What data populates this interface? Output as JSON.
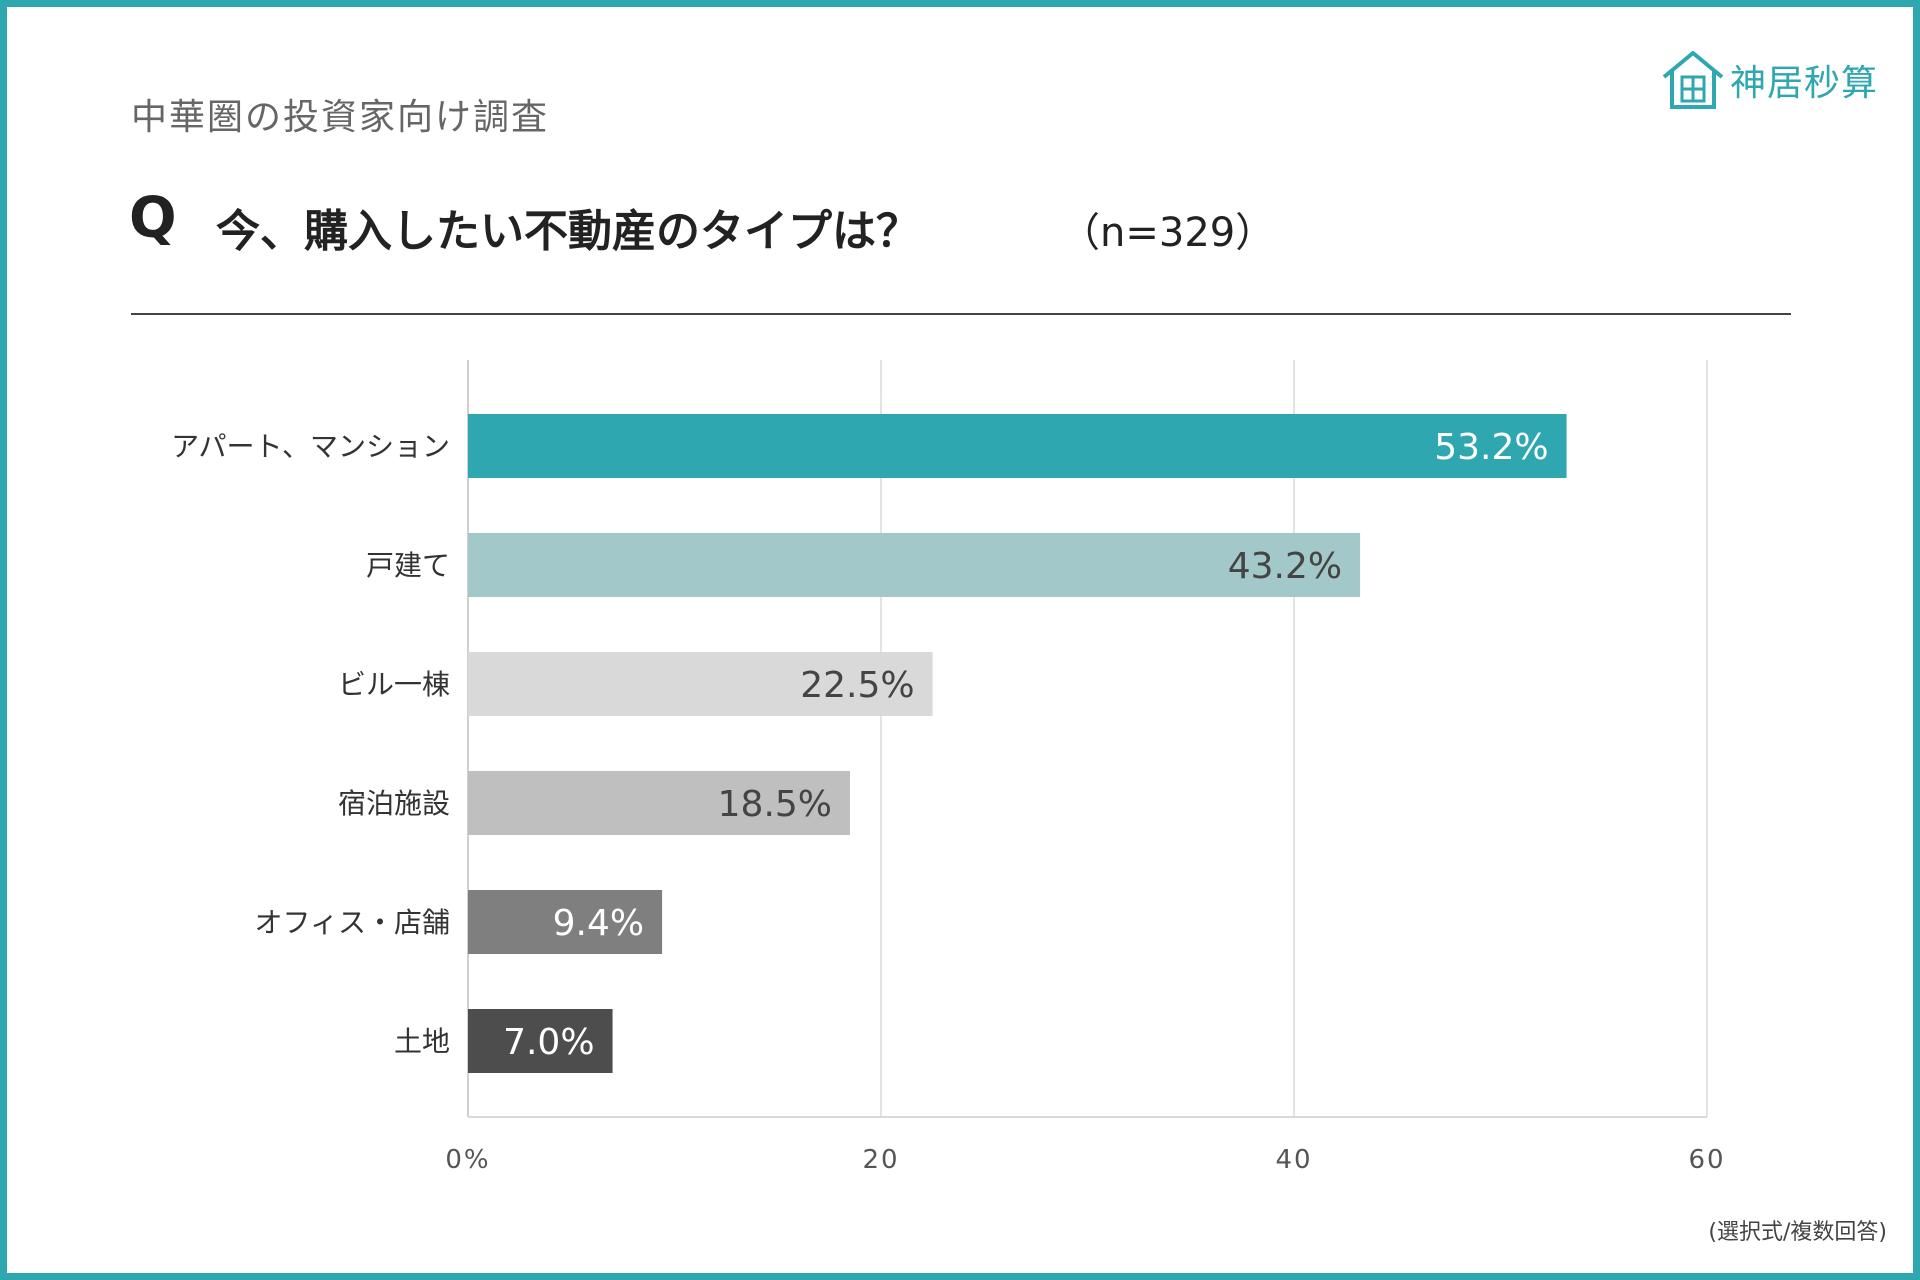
{
  "header": {
    "subtitle": "中華圏の投資家向け調査",
    "q_mark": "Q",
    "question": "今、購入したい不動産のタイプは？",
    "sample": "（n=329）"
  },
  "logo": {
    "text": "神居秒算",
    "icon": "house-icon",
    "color": "#2ea7b0"
  },
  "footer": {
    "note": "(選択式/複数回答)"
  },
  "chart_data": {
    "type": "bar",
    "orientation": "horizontal",
    "title": "今、購入したい不動産のタイプは？",
    "xlabel": "",
    "ylabel": "",
    "categories": [
      "アパート、マンション",
      "戸建て",
      "ビル一棟",
      "宿泊施設",
      "オフィス・店舗",
      "土地"
    ],
    "values": [
      53.2,
      43.2,
      22.5,
      18.5,
      9.4,
      7.0
    ],
    "value_labels": [
      "53.2%",
      "43.2%",
      "22.5%",
      "18.5%",
      "9.4%",
      "7.0%"
    ],
    "colors": [
      "#2ea7b0",
      "#a3c8c9",
      "#d9d9d9",
      "#bfbfbf",
      "#7f7f7f",
      "#4d4d4d"
    ],
    "label_colors": [
      "#ffffff",
      "#444444",
      "#444444",
      "#444444",
      "#ffffff",
      "#ffffff"
    ],
    "xlim": [
      0,
      60
    ],
    "xticks": [
      0,
      20,
      40,
      60
    ],
    "xtick_labels": [
      "0%",
      "20",
      "40",
      "60"
    ],
    "grid": true,
    "legend": "none"
  }
}
